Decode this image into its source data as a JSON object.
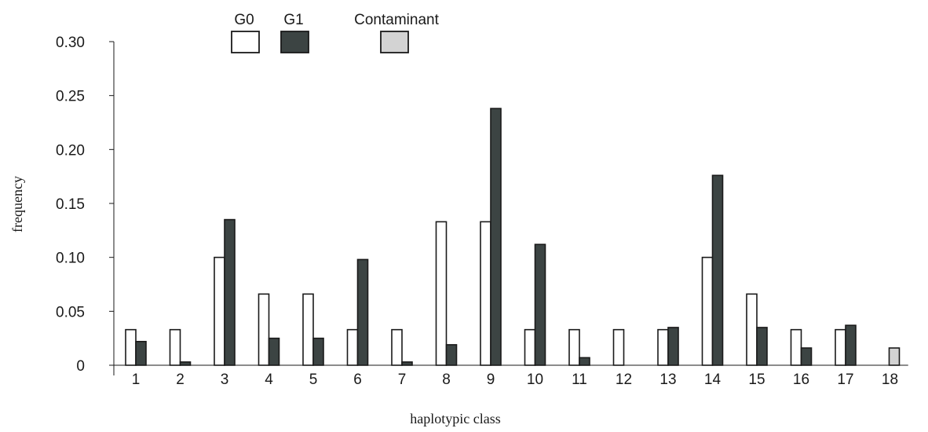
{
  "chart_data": {
    "type": "bar",
    "title": "",
    "xlabel": "haplotypic class",
    "ylabel": "frequency",
    "ylim": [
      0,
      0.3
    ],
    "yticks": [
      {
        "value": 0,
        "label": "0"
      },
      {
        "value": 0.05,
        "label": "0.05"
      },
      {
        "value": 0.1,
        "label": "0.10"
      },
      {
        "value": 0.15,
        "label": "0.15"
      },
      {
        "value": 0.2,
        "label": "0.20"
      },
      {
        "value": 0.25,
        "label": "0.25"
      },
      {
        "value": 0.3,
        "label": "0.30"
      }
    ],
    "categories": [
      "1",
      "2",
      "3",
      "4",
      "5",
      "6",
      "7",
      "8",
      "9",
      "10",
      "11",
      "12",
      "13",
      "14",
      "15",
      "16",
      "17",
      "18"
    ],
    "legend_position": "top",
    "grid": false,
    "series": [
      {
        "name": "G0",
        "color": "#ffffff",
        "values": [
          0.033,
          0.033,
          0.1,
          0.066,
          0.066,
          0.033,
          0.033,
          0.133,
          0.133,
          0.033,
          0.033,
          0.033,
          0.033,
          0.1,
          0.066,
          0.033,
          0.033,
          null
        ]
      },
      {
        "name": "G1",
        "color": "#3c4443",
        "values": [
          0.022,
          0.003,
          0.135,
          0.025,
          0.025,
          0.098,
          0.003,
          0.019,
          0.238,
          0.112,
          0.007,
          null,
          0.035,
          0.176,
          0.035,
          0.016,
          0.037,
          null
        ]
      },
      {
        "name": "Contaminant",
        "color": "#d3d3d3",
        "values": [
          null,
          null,
          null,
          null,
          null,
          null,
          null,
          null,
          null,
          null,
          null,
          null,
          null,
          null,
          null,
          null,
          null,
          0.016
        ]
      }
    ]
  }
}
